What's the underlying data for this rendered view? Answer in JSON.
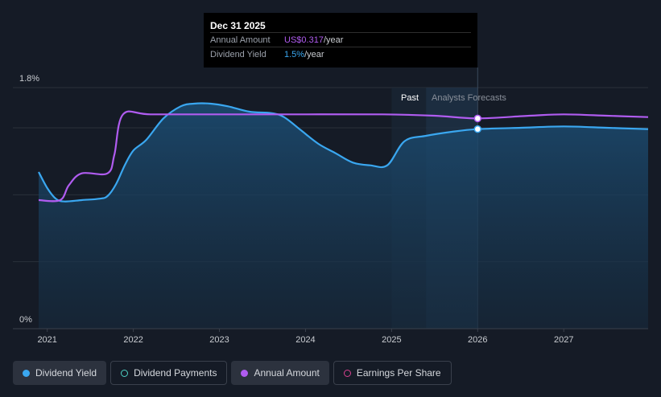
{
  "tooltip": {
    "date": "Dec 31 2025",
    "rows": [
      {
        "label": "Annual Amount",
        "value": "US$0.317",
        "unit": "/year"
      },
      {
        "label": "Dividend Yield",
        "value": "1.5%",
        "unit": "/year"
      }
    ]
  },
  "regions": {
    "past": "Past",
    "forecast": "Analysts Forecasts"
  },
  "legend": [
    {
      "label": "Dividend Yield",
      "color": "#3aa7f0",
      "filled": true
    },
    {
      "label": "Dividend Payments",
      "color": "#4fd1c5",
      "filled": false
    },
    {
      "label": "Annual Amount",
      "color": "#b05cf0",
      "filled": true
    },
    {
      "label": "Earnings Per Share",
      "color": "#d6418f",
      "filled": false
    }
  ],
  "chart_data": {
    "type": "line",
    "y_tick_labels": [
      "1.8%",
      "0%"
    ],
    "ylim": [
      0,
      1.8
    ],
    "xlim": [
      2020.9,
      2027.98
    ],
    "x_tick_labels": [
      "2021",
      "2022",
      "2023",
      "2024",
      "2025",
      "2026",
      "2027"
    ],
    "x_ticks": [
      2021,
      2022,
      2023,
      2024,
      2025,
      2026,
      2027
    ],
    "forecast_start": 2025.0,
    "highlight_band": [
      2025.4,
      2026.0
    ],
    "marker_x": 2026.0,
    "grid": true,
    "series": [
      {
        "name": "Dividend Yield",
        "color": "#3aa7f0",
        "fill": true,
        "points": [
          [
            2020.9,
            1.17
          ],
          [
            2021.0,
            1.05
          ],
          [
            2021.1,
            0.97
          ],
          [
            2021.2,
            0.95
          ],
          [
            2021.4,
            0.96
          ],
          [
            2021.6,
            0.97
          ],
          [
            2021.7,
            0.99
          ],
          [
            2021.8,
            1.08
          ],
          [
            2021.9,
            1.22
          ],
          [
            2022.0,
            1.33
          ],
          [
            2022.15,
            1.41
          ],
          [
            2022.35,
            1.57
          ],
          [
            2022.55,
            1.66
          ],
          [
            2022.7,
            1.68
          ],
          [
            2022.9,
            1.68
          ],
          [
            2023.1,
            1.66
          ],
          [
            2023.35,
            1.62
          ],
          [
            2023.6,
            1.61
          ],
          [
            2023.75,
            1.58
          ],
          [
            2023.95,
            1.48
          ],
          [
            2024.15,
            1.38
          ],
          [
            2024.35,
            1.31
          ],
          [
            2024.55,
            1.24
          ],
          [
            2024.75,
            1.22
          ],
          [
            2024.95,
            1.22
          ],
          [
            2025.15,
            1.4
          ],
          [
            2025.4,
            1.44
          ],
          [
            2025.7,
            1.47
          ],
          [
            2026.0,
            1.49
          ],
          [
            2026.5,
            1.5
          ],
          [
            2027.0,
            1.51
          ],
          [
            2027.5,
            1.5
          ],
          [
            2027.98,
            1.49
          ]
        ]
      },
      {
        "name": "Annual Amount",
        "color": "#b05cf0",
        "fill": false,
        "points": [
          [
            2020.9,
            0.96
          ],
          [
            2021.15,
            0.96
          ],
          [
            2021.25,
            1.07
          ],
          [
            2021.4,
            1.16
          ],
          [
            2021.7,
            1.16
          ],
          [
            2021.78,
            1.3
          ],
          [
            2021.88,
            1.6
          ],
          [
            2022.2,
            1.6
          ],
          [
            2023.0,
            1.6
          ],
          [
            2024.0,
            1.6
          ],
          [
            2024.9,
            1.6
          ],
          [
            2025.5,
            1.59
          ],
          [
            2026.0,
            1.57
          ],
          [
            2026.6,
            1.59
          ],
          [
            2027.0,
            1.6
          ],
          [
            2027.5,
            1.59
          ],
          [
            2027.98,
            1.58
          ]
        ]
      }
    ]
  }
}
